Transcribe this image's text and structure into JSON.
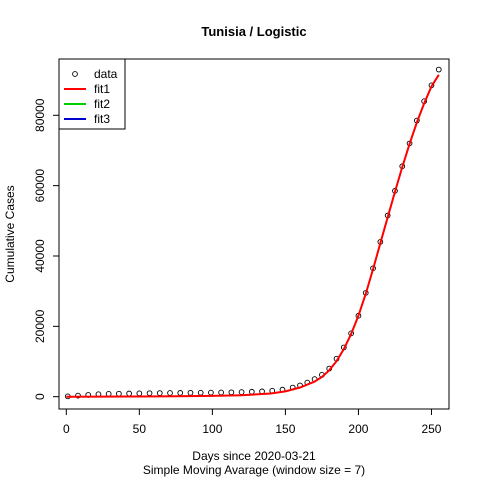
{
  "chart_data": {
    "type": "scatter",
    "title": "Tunisia / Logistic",
    "xlabel": "Days since 2020-03-21",
    "subtitle": "Simple Moving Avarage (window size = 7)",
    "ylabel": "Cumulative Cases",
    "xlim": [
      -5,
      262
    ],
    "ylim": [
      -3500,
      96000
    ],
    "x_ticks": [
      0,
      50,
      100,
      150,
      200,
      250
    ],
    "y_ticks": [
      0,
      20000,
      40000,
      60000,
      80000
    ],
    "legend_position": "top-left",
    "legend": [
      {
        "name": "data",
        "kind": "point",
        "color": "#000000"
      },
      {
        "name": "fit1",
        "kind": "line",
        "color": "#ff0000"
      },
      {
        "name": "fit2",
        "kind": "line",
        "color": "#00cd00"
      },
      {
        "name": "fit3",
        "kind": "line",
        "color": "#0000cd"
      }
    ],
    "data_points": {
      "x": [
        1,
        8,
        15,
        22,
        29,
        36,
        43,
        50,
        57,
        64,
        71,
        78,
        85,
        92,
        99,
        106,
        113,
        120,
        127,
        134,
        141,
        148,
        155,
        160,
        165,
        170,
        175,
        180,
        185,
        190,
        195,
        200,
        205,
        210,
        215,
        220,
        225,
        230,
        235,
        240,
        245,
        250,
        255
      ],
      "y": [
        100,
        300,
        500,
        700,
        800,
        850,
        900,
        950,
        1000,
        1030,
        1050,
        1080,
        1100,
        1130,
        1160,
        1200,
        1250,
        1300,
        1400,
        1500,
        1700,
        2000,
        2600,
        3200,
        4000,
        5000,
        6200,
        8000,
        10800,
        14000,
        18000,
        23000,
        29500,
        36500,
        44000,
        51500,
        58500,
        65500,
        72000,
        78500,
        84000,
        88500,
        93000
      ]
    },
    "fit1": {
      "x": [
        0,
        25,
        50,
        75,
        100,
        120,
        140,
        150,
        160,
        170,
        175,
        180,
        185,
        190,
        195,
        200,
        205,
        210,
        215,
        220,
        225,
        230,
        235,
        240,
        245,
        250,
        255
      ],
      "y": [
        0,
        20,
        60,
        110,
        220,
        400,
        900,
        1500,
        2600,
        4300,
        5600,
        7500,
        10100,
        13500,
        17800,
        23000,
        29200,
        36200,
        43600,
        51000,
        58300,
        65300,
        71900,
        78000,
        83400,
        88200,
        91500
      ]
    }
  }
}
